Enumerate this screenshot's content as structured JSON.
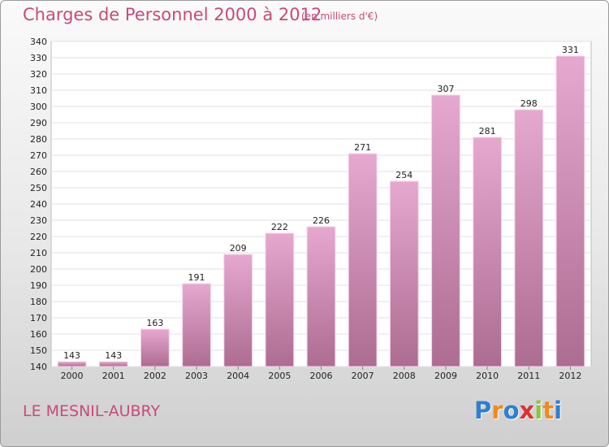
{
  "chart_data": {
    "type": "bar",
    "title": "Charges de Personnel 2000 à 2012",
    "subtitle": "(en milliers d'€)",
    "categories": [
      "2000",
      "2001",
      "2002",
      "2003",
      "2004",
      "2005",
      "2006",
      "2007",
      "2008",
      "2009",
      "2010",
      "2011",
      "2012"
    ],
    "values": [
      143,
      143,
      163,
      191,
      209,
      222,
      226,
      271,
      254,
      307,
      281,
      298,
      331
    ],
    "ylim": [
      140,
      340
    ],
    "ytick_step": 10,
    "grid": true,
    "bar_color": "#d490b8",
    "label_color": "#c84a7a"
  },
  "footer": {
    "commune": "LE MESNIL-AUBRY",
    "logo": {
      "letters": [
        "P",
        "r",
        "o",
        "x",
        "i",
        "t",
        "i"
      ],
      "colors": [
        "#2f7fd0",
        "#f08a1c",
        "#2f7fd0",
        "#e03030",
        "#8cc63f",
        "#f08a1c",
        "#2f7fd0"
      ]
    }
  }
}
